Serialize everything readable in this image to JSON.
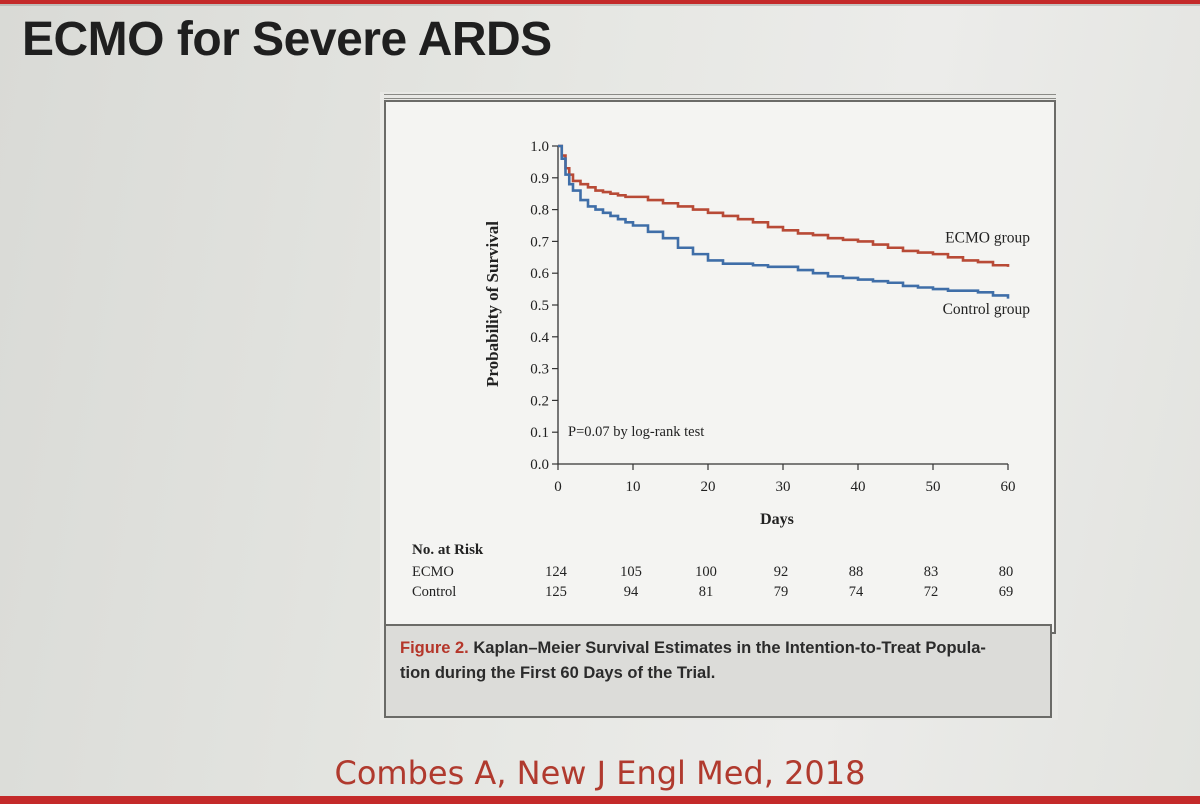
{
  "slide": {
    "title": "ECMO for Severe ARDS",
    "citation": "Combes A, New J Engl Med, 2018",
    "accent_color": "#c42a2a"
  },
  "figure": {
    "caption_label": "Figure 2.",
    "caption_text": "Kaplan–Meier Survival Estimates in the Intention-to-Treat Popula-tion during the First 60 Days of the Trial.",
    "caption_line1": "Kaplan–Meier Survival Estimates in the Intention-to-Treat Popula-",
    "caption_line2": "tion during the First 60 Days of the Trial.",
    "at_risk": {
      "header": "No. at Risk",
      "days": [
        0,
        10,
        20,
        30,
        40,
        50,
        60
      ],
      "rows": [
        {
          "label": "ECMO",
          "values": [
            "124",
            "105",
            "100",
            "92",
            "88",
            "83",
            "80"
          ]
        },
        {
          "label": "Control",
          "values": [
            "125",
            "94",
            "81",
            "79",
            "74",
            "72",
            "69"
          ]
        }
      ]
    }
  },
  "chart_data": {
    "type": "line",
    "step": true,
    "title": "",
    "xlabel": "Days",
    "ylabel": "Probability of Survival",
    "xlim": [
      0,
      60
    ],
    "ylim": [
      0,
      1.0
    ],
    "xticks": [
      "0",
      "10",
      "20",
      "30",
      "40",
      "50",
      "60"
    ],
    "yticks": [
      "0.0",
      "0.1",
      "0.2",
      "0.3",
      "0.4",
      "0.5",
      "0.6",
      "0.7",
      "0.8",
      "0.9",
      "1.0"
    ],
    "annotation": "P=0.07 by log-rank test",
    "grid": false,
    "series": [
      {
        "name": "ECMO group",
        "color": "#b84a36",
        "x": [
          0,
          0.5,
          1,
          1.5,
          2,
          3,
          4,
          5,
          6,
          7,
          8,
          9,
          10,
          12,
          14,
          16,
          18,
          20,
          22,
          24,
          26,
          28,
          30,
          32,
          34,
          36,
          38,
          40,
          42,
          44,
          46,
          48,
          50,
          52,
          54,
          56,
          58,
          60
        ],
        "y": [
          1.0,
          0.97,
          0.93,
          0.91,
          0.89,
          0.88,
          0.87,
          0.86,
          0.855,
          0.85,
          0.845,
          0.84,
          0.84,
          0.83,
          0.82,
          0.81,
          0.8,
          0.79,
          0.78,
          0.77,
          0.76,
          0.745,
          0.735,
          0.725,
          0.72,
          0.71,
          0.705,
          0.7,
          0.69,
          0.68,
          0.67,
          0.665,
          0.66,
          0.65,
          0.64,
          0.635,
          0.625,
          0.62
        ]
      },
      {
        "name": "Control group",
        "color": "#3f6ea8",
        "x": [
          0,
          0.5,
          1,
          1.5,
          2,
          3,
          4,
          5,
          6,
          7,
          8,
          9,
          10,
          12,
          14,
          16,
          18,
          20,
          22,
          24,
          26,
          28,
          30,
          32,
          34,
          36,
          38,
          40,
          42,
          44,
          46,
          48,
          50,
          52,
          54,
          56,
          58,
          60
        ],
        "y": [
          1.0,
          0.96,
          0.91,
          0.88,
          0.86,
          0.83,
          0.81,
          0.8,
          0.79,
          0.78,
          0.77,
          0.76,
          0.75,
          0.73,
          0.71,
          0.68,
          0.66,
          0.64,
          0.63,
          0.63,
          0.625,
          0.62,
          0.62,
          0.61,
          0.6,
          0.59,
          0.585,
          0.58,
          0.575,
          0.57,
          0.56,
          0.555,
          0.55,
          0.545,
          0.545,
          0.54,
          0.53,
          0.52
        ]
      }
    ]
  }
}
